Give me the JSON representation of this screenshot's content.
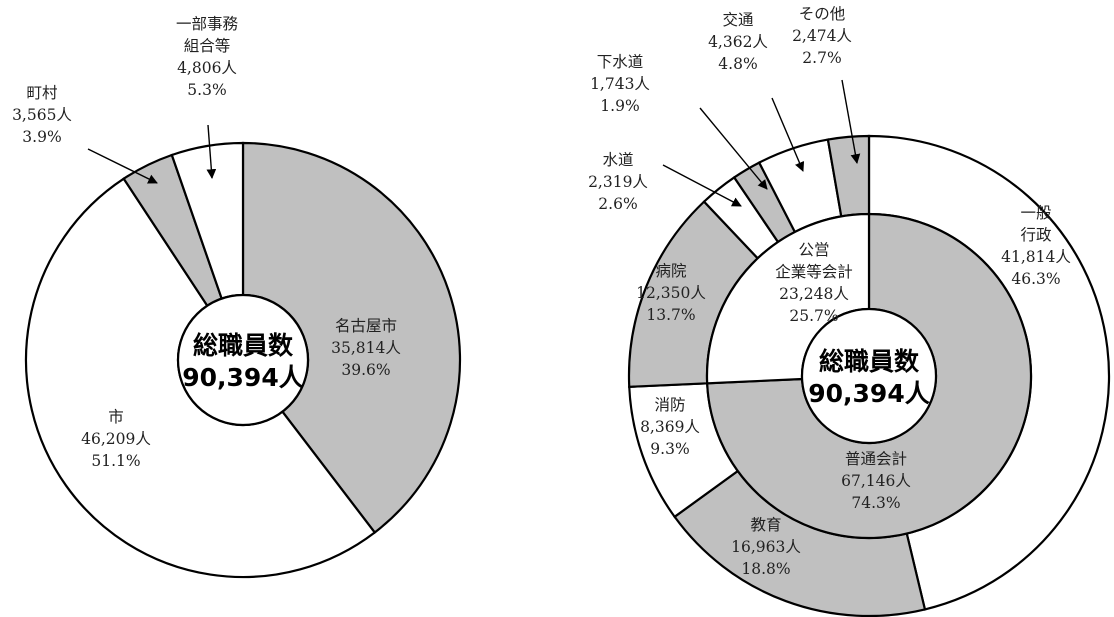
{
  "chart_data": [
    {
      "type": "pie",
      "style": "donut",
      "center_label": [
        "総職員数",
        "90,394人"
      ],
      "colors": {
        "gray": "#c0c0c0",
        "white": "#ffffff"
      },
      "slices": [
        {
          "name": "名古屋市",
          "value": 35814,
          "value_label": "35,814人",
          "pct_label": "39.6%",
          "fill": "gray"
        },
        {
          "name": "市",
          "value": 46209,
          "value_label": "46,209人",
          "pct_label": "51.1%",
          "fill": "white"
        },
        {
          "name": "町村",
          "value": 3565,
          "value_label": "3,565人",
          "pct_label": "3.9%",
          "fill": "gray"
        },
        {
          "name_lines": [
            "一部事務",
            "組合等"
          ],
          "value": 4806,
          "value_label": "4,806人",
          "pct_label": "5.3%",
          "fill": "white"
        }
      ]
    },
    {
      "type": "pie",
      "style": "nested-donut",
      "center_label": [
        "総職員数",
        "90,394人"
      ],
      "colors": {
        "gray": "#c0c0c0",
        "white": "#ffffff"
      },
      "inner_ring": [
        {
          "name": "普通会計",
          "value": 67146,
          "value_label": "67,146人",
          "pct_label": "74.3%",
          "fill": "gray"
        },
        {
          "name_lines": [
            "公営",
            "企業等会計"
          ],
          "value": 23248,
          "value_label": "23,248人",
          "pct_label": "25.7%",
          "fill": "white"
        }
      ],
      "outer_ring": [
        {
          "name_lines": [
            "一般",
            "行政"
          ],
          "value": 41814,
          "value_label": "41,814人",
          "pct_label": "46.3%",
          "fill": "white"
        },
        {
          "name": "教育",
          "value": 16963,
          "value_label": "16,963人",
          "pct_label": "18.8%",
          "fill": "gray"
        },
        {
          "name": "消防",
          "value": 8369,
          "value_label": "8,369人",
          "pct_label": "9.3%",
          "fill": "white"
        },
        {
          "name": "病院",
          "value": 12350,
          "value_label": "12,350人",
          "pct_label": "13.7%",
          "fill": "gray"
        },
        {
          "name": "水道",
          "value": 2319,
          "value_label": "2,319人",
          "pct_label": "2.6%",
          "fill": "white"
        },
        {
          "name": "下水道",
          "value": 1743,
          "value_label": "1,743人",
          "pct_label": "1.9%",
          "fill": "gray"
        },
        {
          "name": "交通",
          "value": 4362,
          "value_label": "4,362人",
          "pct_label": "4.8%",
          "fill": "white"
        },
        {
          "name": "その他",
          "value": 2474,
          "value_label": "2,474人",
          "pct_label": "2.7%",
          "fill": "gray"
        }
      ]
    }
  ]
}
